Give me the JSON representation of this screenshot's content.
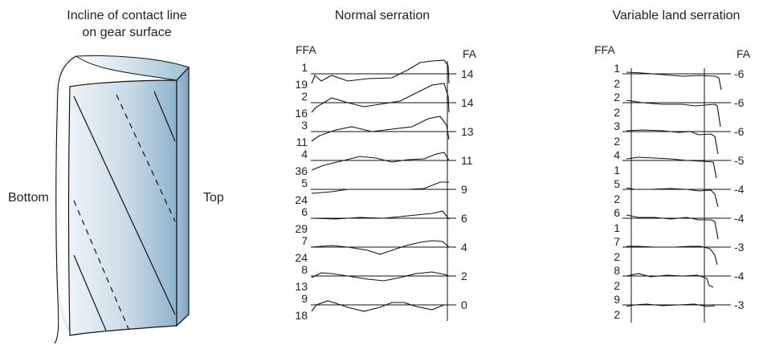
{
  "gear_panel": {
    "title_line1": "Incline of contact line",
    "title_line2": "on gear surface",
    "label_bottom": "Bottom",
    "label_top": "Top",
    "colors": {
      "face_dark": "#8fb3cc",
      "face_light": "#eef4f8",
      "top_face": "#a9c8dc",
      "side_face": "#8cb0c8",
      "outline": "#111111"
    }
  },
  "normal_panel": {
    "title": "Normal serration",
    "ffa_header": "FFA",
    "fa_header": "FA",
    "rows": [
      {
        "num": "1",
        "ffa": "19",
        "fa": "14"
      },
      {
        "num": "2",
        "ffa": "16",
        "fa": "14"
      },
      {
        "num": "3",
        "ffa": "11",
        "fa": "13"
      },
      {
        "num": "4",
        "ffa": "36",
        "fa": "11"
      },
      {
        "num": "5",
        "ffa": "24",
        "fa": "9"
      },
      {
        "num": "6",
        "ffa": "29",
        "fa": "6"
      },
      {
        "num": "7",
        "ffa": "24",
        "fa": "4"
      },
      {
        "num": "8",
        "ffa": "13",
        "fa": "2"
      },
      {
        "num": "9",
        "ffa": "18",
        "fa": "0"
      }
    ]
  },
  "variable_panel": {
    "title": "Variable land serration",
    "ffa_header": "FFA",
    "fa_header": "FA",
    "rows": [
      {
        "num": "1",
        "ffa": "2",
        "fa": "-6"
      },
      {
        "num": "2",
        "ffa": "2",
        "fa": "-6"
      },
      {
        "num": "3",
        "ffa": "2",
        "fa": "-6"
      },
      {
        "num": "4",
        "ffa": "1",
        "fa": "-5"
      },
      {
        "num": "5",
        "ffa": "2",
        "fa": "-4"
      },
      {
        "num": "6",
        "ffa": "1",
        "fa": "-4"
      },
      {
        "num": "7",
        "ffa": "2",
        "fa": "-3"
      },
      {
        "num": "8",
        "ffa": "2",
        "fa": "-4"
      },
      {
        "num": "9",
        "ffa": "2",
        "fa": "-3"
      }
    ]
  }
}
